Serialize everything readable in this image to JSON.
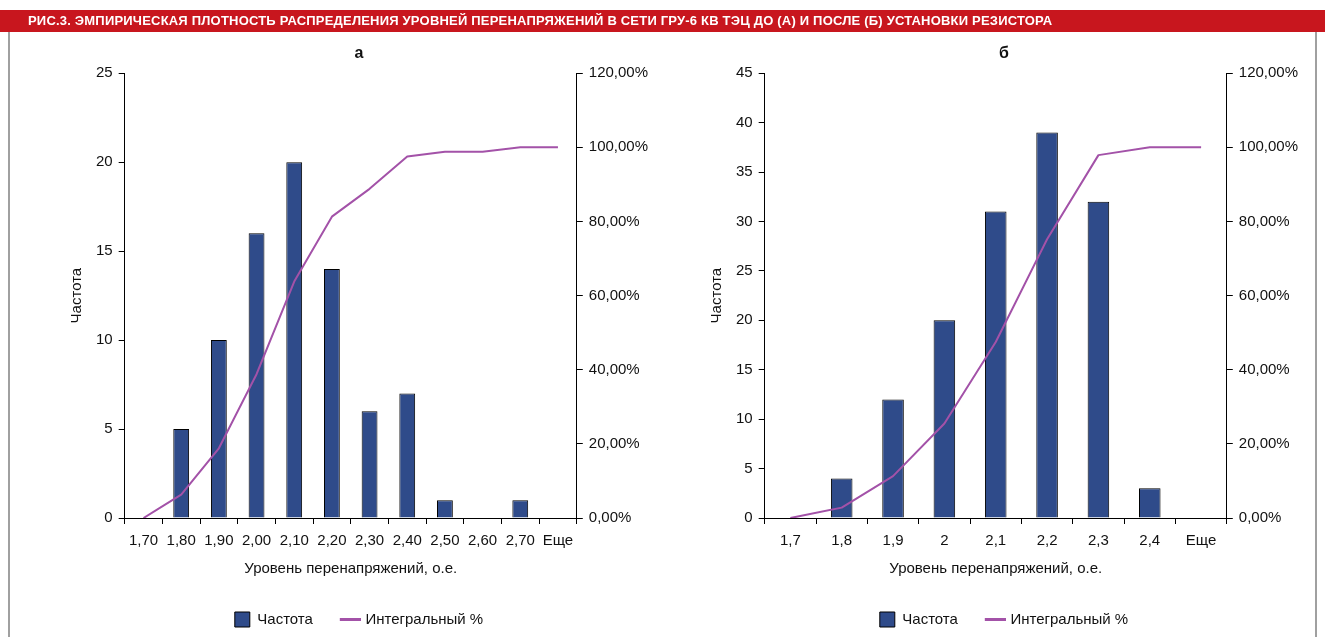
{
  "chart_data": [
    {
      "type": "bar",
      "title": "а",
      "annotations": [
        "РИС.3. ЭМПИРИЧЕСКАЯ ПЛОТНОСТЬ РАСПРЕДЕЛЕНИЯ УРОВНЕЙ ПЕРЕНАПРЯЖЕНИЙ В СЕТИ ГРУ-6 КВ ТЭЦ ДО (А) И ПОСЛЕ (Б) УСТАНОВКИ РЕЗИСТОРА"
      ],
      "xlabel": "Уровень перенапряжений, о.е.",
      "ylabel": "Частота",
      "categories": [
        "1,70",
        "1,80",
        "1,90",
        "2,00",
        "2,10",
        "2,20",
        "2,30",
        "2,40",
        "2,50",
        "2,60",
        "2,70",
        "Еще"
      ],
      "series": [
        {
          "name": "Частота",
          "color": "#2f4b8a",
          "values": [
            0,
            5,
            10,
            16,
            20,
            14,
            6,
            7,
            1,
            0,
            1,
            0
          ]
        },
        {
          "name": "Интегральный %",
          "type": "line",
          "axis": "y2",
          "color": "#a352a8",
          "values": [
            0,
            6.3,
            18.8,
            38.8,
            63.8,
            81.3,
            88.8,
            97.5,
            98.8,
            98.8,
            100,
            100
          ]
        }
      ],
      "ylim": [
        0,
        25
      ],
      "yticks": [
        0,
        5,
        10,
        15,
        20,
        25
      ],
      "y2lim": [
        0,
        120
      ],
      "y2ticks": [
        {
          "value": 0,
          "label": "0,00%"
        },
        {
          "value": 20,
          "label": "20,00%"
        },
        {
          "value": 40,
          "label": "40,00%"
        },
        {
          "value": 60,
          "label": "60,00%"
        },
        {
          "value": 80,
          "label": "80,00%"
        },
        {
          "value": 100,
          "label": "100,00%"
        },
        {
          "value": 120,
          "label": "120,00%"
        }
      ],
      "legend": "bottom",
      "marker": "none"
    },
    {
      "type": "bar",
      "title": "б",
      "xlabel": "Уровень перенапряжений, о.е.",
      "ylabel": "Частота",
      "categories": [
        "1,7",
        "1,8",
        "1,9",
        "2",
        "2,1",
        "2,2",
        "2,3",
        "2,4",
        "Еще"
      ],
      "series": [
        {
          "name": "Частота",
          "color": "#2f4b8a",
          "values": [
            0,
            4,
            12,
            20,
            31,
            39,
            32,
            3,
            0
          ]
        },
        {
          "name": "Интегральный %",
          "type": "line",
          "axis": "y2",
          "color": "#a352a8",
          "values": [
            0,
            2.8,
            11.3,
            25.5,
            47.5,
            75.2,
            97.9,
            100,
            100
          ]
        }
      ],
      "ylim": [
        0,
        45
      ],
      "yticks": [
        0,
        5,
        10,
        15,
        20,
        25,
        30,
        35,
        40,
        45
      ],
      "y2lim": [
        0,
        120
      ],
      "y2ticks": [
        {
          "value": 0,
          "label": "0,00%"
        },
        {
          "value": 20,
          "label": "20,00%"
        },
        {
          "value": 40,
          "label": "40,00%"
        },
        {
          "value": 60,
          "label": "60,00%"
        },
        {
          "value": 80,
          "label": "80,00%"
        },
        {
          "value": 100,
          "label": "100,00%"
        },
        {
          "value": 120,
          "label": "120,00%"
        }
      ],
      "legend": "bottom",
      "marker": "none"
    }
  ]
}
